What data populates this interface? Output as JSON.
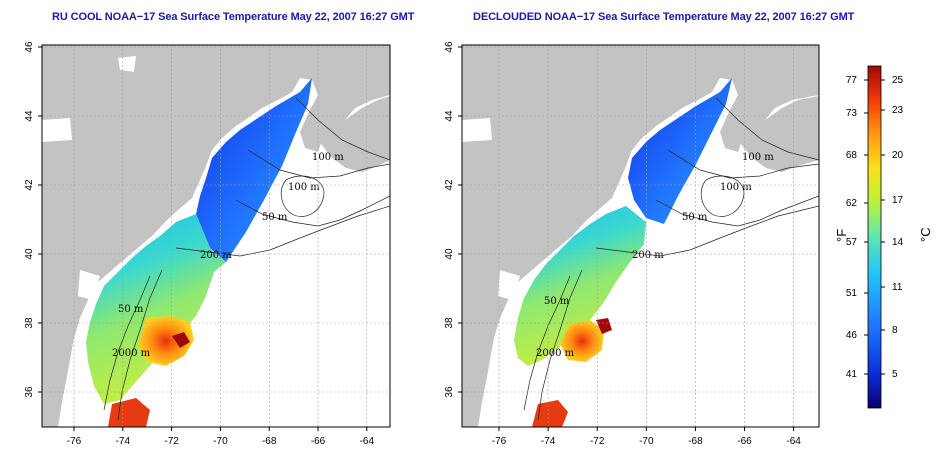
{
  "panels": [
    {
      "title": "RU COOL NOAA−17 Sea Surface Temperature May 22, 2007 16:27 GMT",
      "x_ticks": [
        "-76",
        "-74",
        "-72",
        "-70",
        "-68",
        "-66",
        "-64"
      ],
      "y_ticks": [
        "36",
        "38",
        "40",
        "42",
        "44",
        "46"
      ],
      "contour_labels": [
        "100 m",
        "100 m",
        "50 m",
        "200 m",
        "50 m",
        "2000 m"
      ]
    },
    {
      "title": "DECLOUDED NOAA−17 Sea Surface Temperature May 22, 2007 16:27 GMT",
      "x_ticks": [
        "-76",
        "-74",
        "-72",
        "-70",
        "-68",
        "-66",
        "-64"
      ],
      "y_ticks": [
        "36",
        "38",
        "40",
        "42",
        "44",
        "46"
      ],
      "contour_labels": [
        "100 m",
        "100 m",
        "50 m",
        "200 m",
        "50 m",
        "2000 m"
      ]
    }
  ],
  "colorbar": {
    "fahrenheit_ticks": [
      "77",
      "73",
      "68",
      "62",
      "57",
      "51",
      "46",
      "41"
    ],
    "celsius_ticks": [
      "25",
      "23",
      "20",
      "17",
      "14",
      "11",
      "8",
      "5"
    ],
    "fahrenheit_unit": "°F",
    "celsius_unit": "°C",
    "colors": [
      "#08006b",
      "#0a2fd8",
      "#1f7bff",
      "#24c8f5",
      "#5fe6b0",
      "#b9f23c",
      "#f7e21c",
      "#ff9a12",
      "#f23a0c",
      "#9e0a0a"
    ]
  },
  "map_colors": {
    "land": "#c3c3c3",
    "ocean": "#ffffff",
    "grid": "#a0a0a0"
  }
}
